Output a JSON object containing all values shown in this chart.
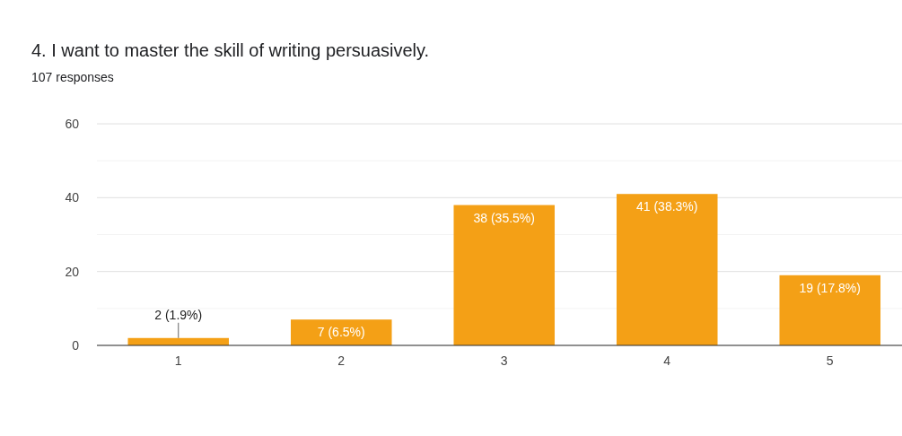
{
  "chart_data": {
    "type": "bar",
    "title": "4. I want to master the skill of writing persuasively.",
    "subtitle": "107 responses",
    "categories": [
      "1",
      "2",
      "3",
      "4",
      "5"
    ],
    "values": [
      2,
      7,
      38,
      41,
      19
    ],
    "value_labels": [
      "2 (1.9%)",
      "7 (6.5%)",
      "38 (35.5%)",
      "41 (38.3%)",
      "19 (17.8%)"
    ],
    "color": "#f4a016",
    "ylim": [
      0,
      60
    ],
    "yticks": [
      0,
      {
        "value": 10,
        "label": null
      },
      20,
      {
        "value": 30,
        "label": null
      },
      40,
      {
        "value": 50,
        "label": null
      },
      60
    ],
    "grid": "y"
  }
}
